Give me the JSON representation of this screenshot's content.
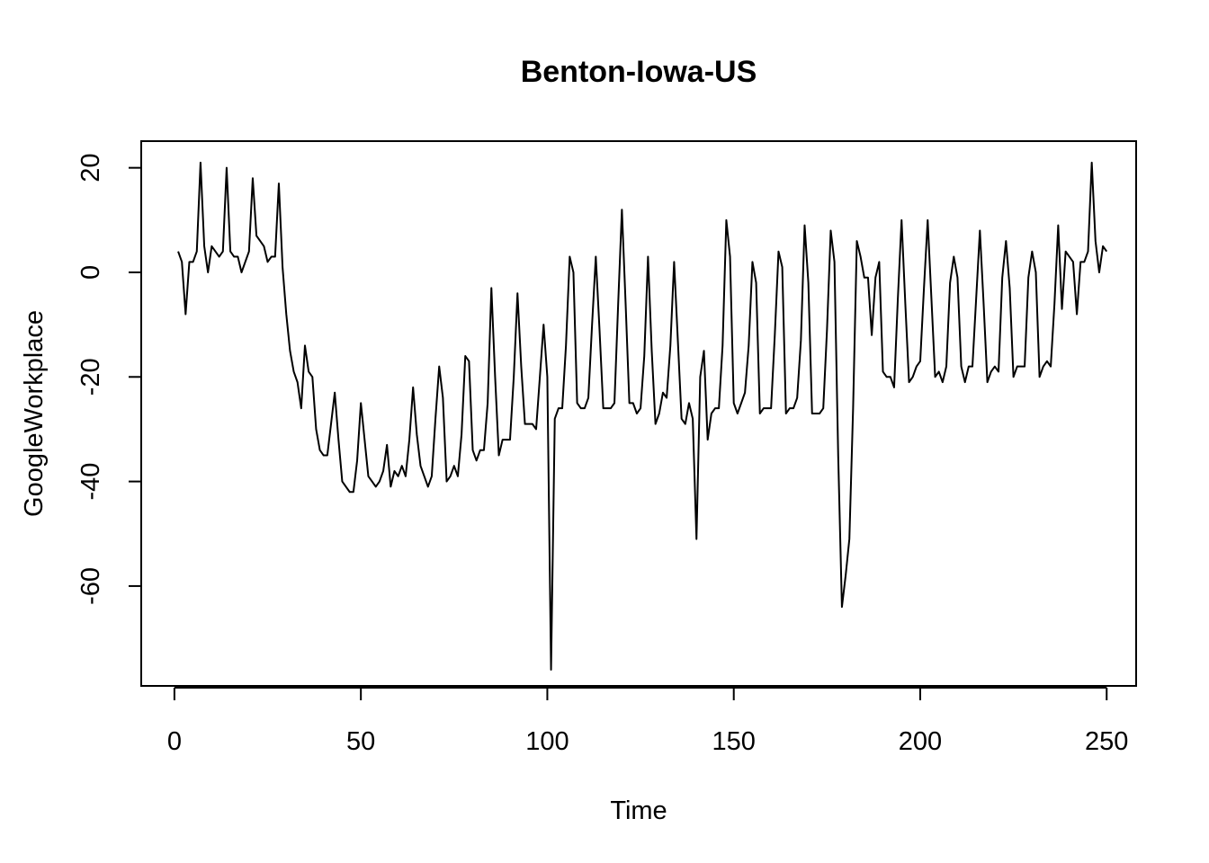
{
  "chart_data": {
    "type": "line",
    "title": "Benton-Iowa-US",
    "xlabel": "Time",
    "ylabel": "GoogleWorkplace",
    "xlim": [
      -8.9,
      257.9
    ],
    "ylim": [
      -79.1,
      25.1
    ],
    "xticks": [
      0,
      50,
      100,
      150,
      200,
      250
    ],
    "yticks": [
      20,
      0,
      -20,
      -40,
      -60
    ],
    "grid": false,
    "x_start": 1,
    "x_step": 1,
    "series": [
      {
        "values": [
          4,
          2,
          -8,
          2,
          2,
          4,
          21,
          5,
          0,
          5,
          4,
          3,
          4,
          20,
          4,
          3,
          3,
          0,
          2,
          4,
          18,
          7,
          6,
          5,
          2,
          3,
          3,
          17,
          1,
          -8,
          -15,
          -19,
          -21,
          -26,
          -14,
          -19,
          -20,
          -30,
          -34,
          -35,
          -35,
          -29,
          -23,
          -32,
          -40,
          -41,
          -42,
          -42,
          -36,
          -25,
          -32,
          -39,
          -40,
          -41,
          -40,
          -38,
          -33,
          -41,
          -38,
          -39,
          -37,
          -39,
          -32,
          -22,
          -31,
          -37,
          -39,
          -41,
          -39,
          -28,
          -18,
          -24,
          -40,
          -39,
          -37,
          -39,
          -31,
          -16,
          -17,
          -34,
          -36,
          -34,
          -34,
          -25,
          -3,
          -20,
          -35,
          -32,
          -32,
          -32,
          -20,
          -4,
          -18,
          -29,
          -29,
          -29,
          -30,
          -20,
          -10,
          -20,
          -76,
          -28,
          -26,
          -26,
          -14,
          3,
          0,
          -25,
          -26,
          -26,
          -24,
          -10,
          3,
          -11,
          -26,
          -26,
          -26,
          -25,
          -6,
          12,
          -6,
          -25,
          -25,
          -27,
          -26,
          -16,
          3,
          -15,
          -29,
          -27,
          -23,
          -24,
          -14,
          2,
          -13,
          -28,
          -29,
          -25,
          -28,
          -51,
          -20,
          -15,
          -32,
          -27,
          -26,
          -26,
          -14,
          10,
          3,
          -25,
          -27,
          -25,
          -23,
          -14,
          2,
          -2,
          -27,
          -26,
          -26,
          -26,
          -12,
          4,
          1,
          -27,
          -26,
          -26,
          -24,
          -13,
          9,
          -2,
          -27,
          -27,
          -27,
          -26,
          -11,
          8,
          2,
          -35,
          -64,
          -58,
          -51,
          -26,
          6,
          3,
          -1,
          -1,
          -12,
          -1,
          2,
          -19,
          -20,
          -20,
          -22,
          -5,
          10,
          -6,
          -21,
          -20,
          -18,
          -17,
          -3,
          10,
          -5,
          -20,
          -19,
          -21,
          -18,
          -2,
          3,
          -1,
          -18,
          -21,
          -18,
          -18,
          -5,
          8,
          -6,
          -21,
          -19,
          -18,
          -19,
          -1,
          6,
          -3,
          -20,
          -18,
          -18,
          -18,
          -1,
          4,
          0,
          -20,
          -18,
          -17,
          -18,
          -6,
          9,
          -7,
          4,
          3,
          2,
          -8,
          2,
          2,
          4,
          21,
          6,
          0,
          5,
          4
        ]
      }
    ]
  }
}
